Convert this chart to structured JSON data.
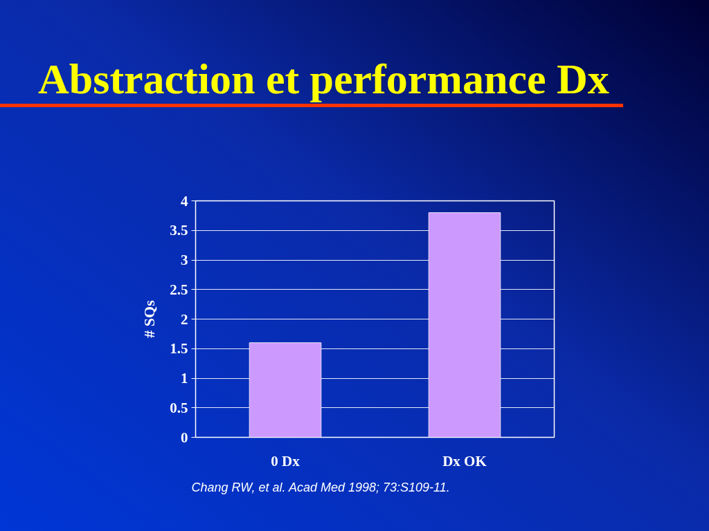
{
  "chart_data": {
    "type": "bar",
    "title": "Abstraction et performance Dx",
    "ylabel": "# SQs",
    "categories": [
      "0 Dx",
      "Dx OK"
    ],
    "values": [
      1.6,
      3.8
    ],
    "color": "#cc99ff",
    "ylim": [
      0,
      4
    ],
    "yticks": [
      0,
      0.5,
      1,
      1.5,
      2,
      2.5,
      3,
      3.5,
      4
    ],
    "grid": "y",
    "annotations": [
      "Chang RW, et al. Acad Med 1998; 73:S109-11."
    ]
  }
}
